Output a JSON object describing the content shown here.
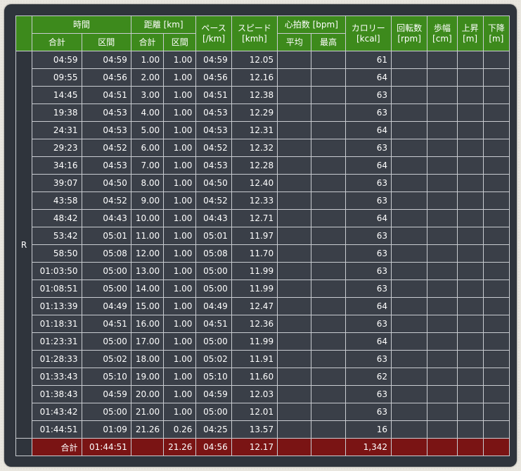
{
  "headers": {
    "time": "時間",
    "time_total": "合計",
    "time_split": "区間",
    "distance": "距離 [km]",
    "distance_total": "合計",
    "distance_split": "区間",
    "pace": "ペース [/km]",
    "speed": "スピード [kmh]",
    "heart": "心拍数 [bpm]",
    "heart_avg": "平均",
    "heart_max": "最高",
    "calorie": "カロリー [kcal]",
    "cadence": "回転数 [rpm]",
    "stride": "歩幅 [cm]",
    "ascent": "上昇 [m]",
    "descent": "下降 [m]"
  },
  "lap_label": "R",
  "rows": [
    {
      "time_total": "04:59",
      "time_split": "04:59",
      "dist_total": "1.00",
      "dist_split": "1.00",
      "pace": "04:59",
      "speed": "12.05",
      "calorie": "61"
    },
    {
      "time_total": "09:55",
      "time_split": "04:56",
      "dist_total": "2.00",
      "dist_split": "1.00",
      "pace": "04:56",
      "speed": "12.16",
      "calorie": "64"
    },
    {
      "time_total": "14:45",
      "time_split": "04:51",
      "dist_total": "3.00",
      "dist_split": "1.00",
      "pace": "04:51",
      "speed": "12.38",
      "calorie": "63"
    },
    {
      "time_total": "19:38",
      "time_split": "04:53",
      "dist_total": "4.00",
      "dist_split": "1.00",
      "pace": "04:53",
      "speed": "12.29",
      "calorie": "63"
    },
    {
      "time_total": "24:31",
      "time_split": "04:53",
      "dist_total": "5.00",
      "dist_split": "1.00",
      "pace": "04:53",
      "speed": "12.31",
      "calorie": "64"
    },
    {
      "time_total": "29:23",
      "time_split": "04:52",
      "dist_total": "6.00",
      "dist_split": "1.00",
      "pace": "04:52",
      "speed": "12.32",
      "calorie": "63"
    },
    {
      "time_total": "34:16",
      "time_split": "04:53",
      "dist_total": "7.00",
      "dist_split": "1.00",
      "pace": "04:53",
      "speed": "12.28",
      "calorie": "64"
    },
    {
      "time_total": "39:07",
      "time_split": "04:50",
      "dist_total": "8.00",
      "dist_split": "1.00",
      "pace": "04:50",
      "speed": "12.40",
      "calorie": "63"
    },
    {
      "time_total": "43:58",
      "time_split": "04:52",
      "dist_total": "9.00",
      "dist_split": "1.00",
      "pace": "04:52",
      "speed": "12.33",
      "calorie": "63"
    },
    {
      "time_total": "48:42",
      "time_split": "04:43",
      "dist_total": "10.00",
      "dist_split": "1.00",
      "pace": "04:43",
      "speed": "12.71",
      "calorie": "64"
    },
    {
      "time_total": "53:42",
      "time_split": "05:01",
      "dist_total": "11.00",
      "dist_split": "1.00",
      "pace": "05:01",
      "speed": "11.97",
      "calorie": "63"
    },
    {
      "time_total": "58:50",
      "time_split": "05:08",
      "dist_total": "12.00",
      "dist_split": "1.00",
      "pace": "05:08",
      "speed": "11.70",
      "calorie": "63"
    },
    {
      "time_total": "01:03:50",
      "time_split": "05:00",
      "dist_total": "13.00",
      "dist_split": "1.00",
      "pace": "05:00",
      "speed": "11.99",
      "calorie": "63"
    },
    {
      "time_total": "01:08:51",
      "time_split": "05:00",
      "dist_total": "14.00",
      "dist_split": "1.00",
      "pace": "05:00",
      "speed": "11.99",
      "calorie": "63"
    },
    {
      "time_total": "01:13:39",
      "time_split": "04:49",
      "dist_total": "15.00",
      "dist_split": "1.00",
      "pace": "04:49",
      "speed": "12.47",
      "calorie": "64"
    },
    {
      "time_total": "01:18:31",
      "time_split": "04:51",
      "dist_total": "16.00",
      "dist_split": "1.00",
      "pace": "04:51",
      "speed": "12.36",
      "calorie": "63"
    },
    {
      "time_total": "01:23:31",
      "time_split": "05:00",
      "dist_total": "17.00",
      "dist_split": "1.00",
      "pace": "05:00",
      "speed": "11.99",
      "calorie": "64"
    },
    {
      "time_total": "01:28:33",
      "time_split": "05:02",
      "dist_total": "18.00",
      "dist_split": "1.00",
      "pace": "05:02",
      "speed": "11.91",
      "calorie": "63"
    },
    {
      "time_total": "01:33:43",
      "time_split": "05:10",
      "dist_total": "19.00",
      "dist_split": "1.00",
      "pace": "05:10",
      "speed": "11.60",
      "calorie": "62"
    },
    {
      "time_total": "01:38:43",
      "time_split": "04:59",
      "dist_total": "20.00",
      "dist_split": "1.00",
      "pace": "04:59",
      "speed": "12.03",
      "calorie": "63"
    },
    {
      "time_total": "01:43:42",
      "time_split": "05:00",
      "dist_total": "21.00",
      "dist_split": "1.00",
      "pace": "05:00",
      "speed": "12.01",
      "calorie": "63"
    },
    {
      "time_total": "01:44:51",
      "time_split": "01:09",
      "dist_total": "21.26",
      "dist_split": "0.26",
      "pace": "04:25",
      "speed": "13.57",
      "calorie": "16"
    }
  ],
  "total": {
    "label": "合計",
    "time": "01:44:51",
    "distance": "21.26",
    "pace": "04:56",
    "speed": "12.17",
    "calorie": "1,342"
  }
}
